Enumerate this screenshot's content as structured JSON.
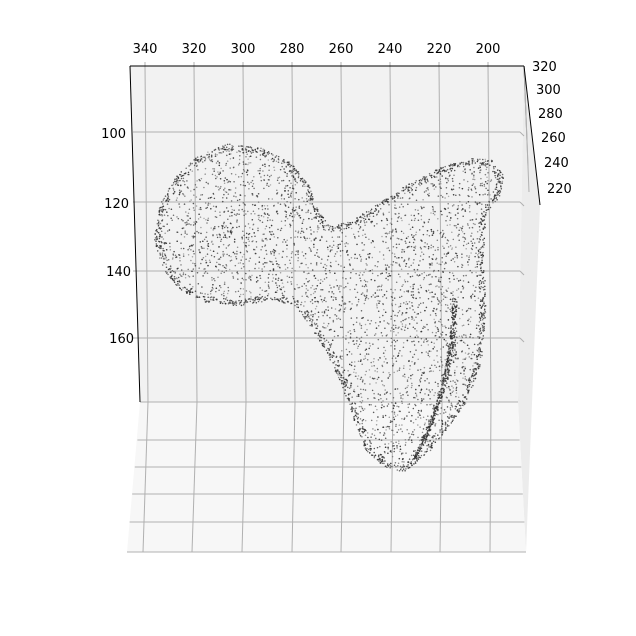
{
  "chart_data": {
    "type": "scatter",
    "subtype": "3d-scatter",
    "title": "",
    "xlabel": "",
    "ylabel": "",
    "zlabel": "",
    "xlim": [
      194,
      350
    ],
    "ylim": [
      215,
      322
    ],
    "zlim": [
      80,
      180
    ],
    "x_ticks": [
      "340",
      "320",
      "300",
      "280",
      "260",
      "240",
      "220",
      "200"
    ],
    "y_ticks": [
      "320",
      "300",
      "280",
      "260",
      "240",
      "220"
    ],
    "z_ticks": [
      "100",
      "120",
      "140",
      "160"
    ],
    "grid": true,
    "point_color": "#333333",
    "pane_color": "#f2f2f2",
    "grid_color": "#b0b0b0",
    "point_cloud": {
      "description": "dense point cloud of a single curved surface shaped like a bent lobed membrane",
      "approx_point_count": 8000
    }
  }
}
